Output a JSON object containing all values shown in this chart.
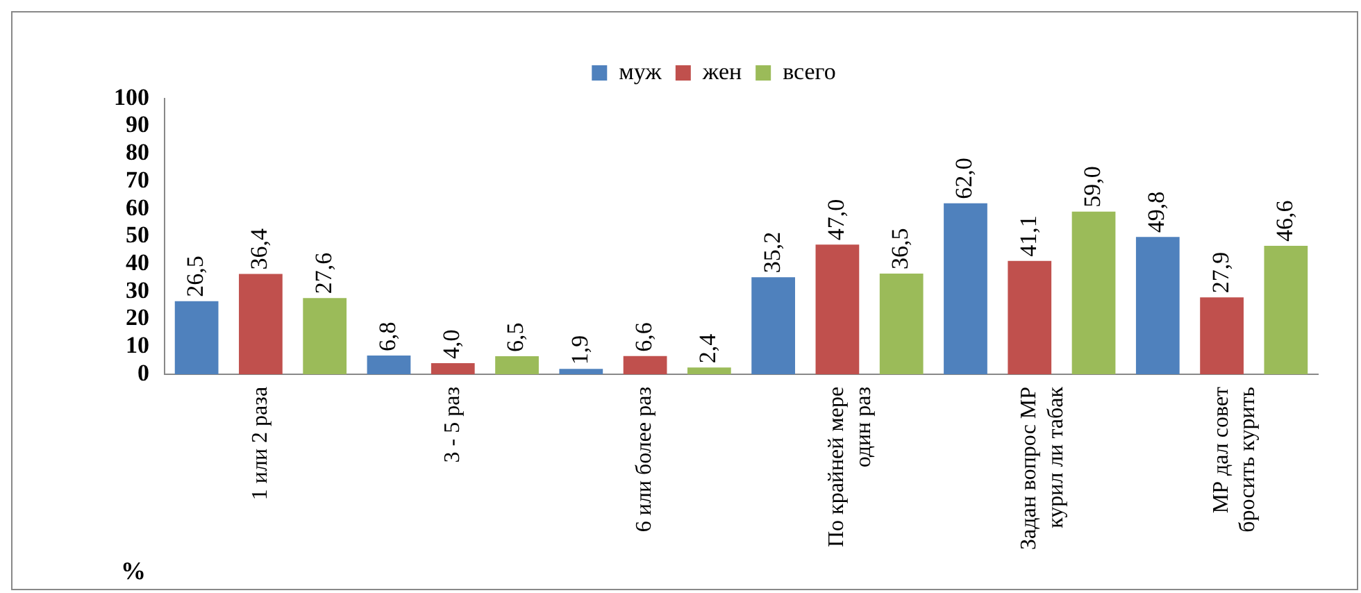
{
  "chart_data": {
    "type": "bar",
    "ylabel": "%",
    "categories": [
      "1 или 2 раза",
      "3 - 5 раз",
      "6 или более раз",
      "По крайней мере один раз",
      "Задан вопрос МР курил ли табак",
      "МР дал совет бросить курить"
    ],
    "series": [
      {
        "name": "муж",
        "color": "#4f81bd",
        "values": [
          26.5,
          6.8,
          1.9,
          35.2,
          62.0,
          49.8
        ],
        "value_labels": [
          "26,5",
          "6,8",
          "1,9",
          "35,2",
          "62,0",
          "49,8"
        ]
      },
      {
        "name": "жен",
        "color": "#c0504d",
        "values": [
          36.4,
          4.0,
          6.6,
          47.0,
          41.1,
          27.9
        ],
        "value_labels": [
          "36,4",
          "4,0",
          "6,6",
          "47,0",
          "41,1",
          "27,9"
        ]
      },
      {
        "name": "всего",
        "color": "#9bbb59",
        "values": [
          27.6,
          6.5,
          2.4,
          36.5,
          59.0,
          46.6
        ],
        "value_labels": [
          "27,6",
          "6,5",
          "2,4",
          "36,5",
          "59,0",
          "46,6"
        ]
      }
    ],
    "ylim": [
      0,
      100
    ],
    "yticks": [
      0,
      10,
      20,
      30,
      40,
      50,
      60,
      70,
      80,
      90,
      100
    ],
    "grid": false,
    "legend": "top"
  }
}
